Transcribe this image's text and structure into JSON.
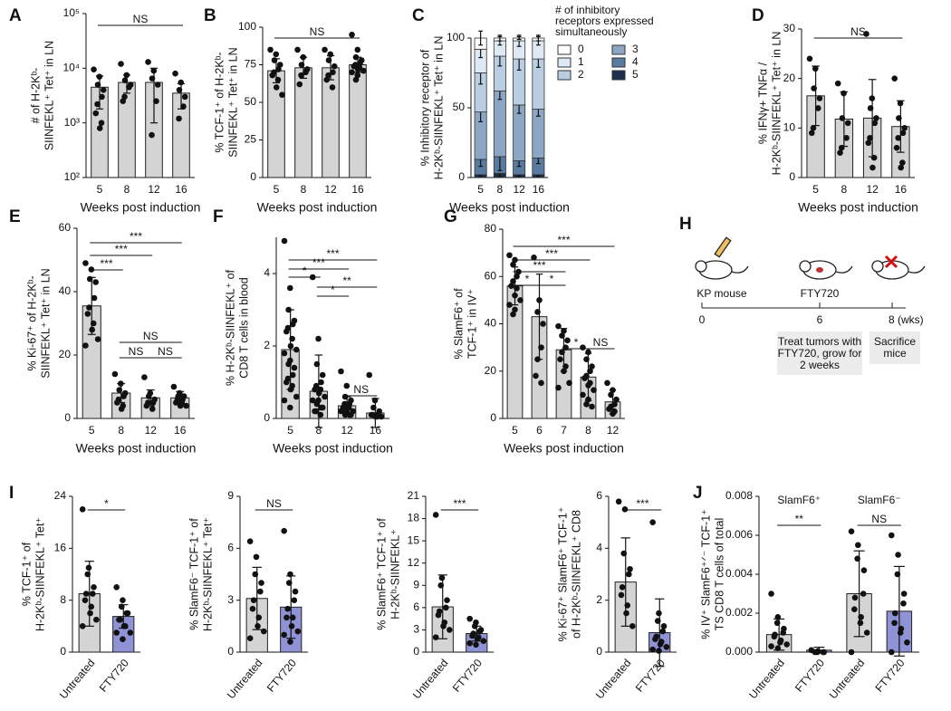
{
  "chart_data": [
    {
      "type": "bar",
      "label": "A",
      "ylabel": [
        "# of H-2Kᵇ-",
        "SIINFEKL⁺ Tet⁺ in LN"
      ],
      "xlabel": "Weeks post induction",
      "log": true,
      "categories": [
        "5",
        "8",
        "12",
        "16"
      ],
      "values": [
        4500,
        5500,
        5500,
        3500
      ],
      "errors": [
        2700,
        2000,
        4500,
        1700
      ],
      "color": "#d4d4d4",
      "points": [
        [
          9500,
          7000,
          5000,
          4000,
          3000,
          2200,
          1500,
          1000,
          800
        ],
        [
          12000,
          7500,
          6000,
          5000,
          4500,
          3000,
          2500
        ],
        [
          13000,
          9000,
          6500,
          5000,
          2500,
          600
        ],
        [
          8000,
          5500,
          4000,
          3000,
          2000,
          1200
        ]
      ],
      "ylim": [
        100,
        100000
      ],
      "yticks": [
        {
          "value": 100,
          "label": "10²"
        },
        {
          "value": 1000,
          "label": "10³"
        },
        {
          "value": 10000,
          "label": "10⁴"
        },
        {
          "value": 100000,
          "label": "10⁵"
        }
      ],
      "sig": [
        {
          "bars": [
            0,
            3
          ],
          "label": "NS"
        }
      ]
    },
    {
      "type": "bar",
      "label": "B",
      "ylabel": [
        "% TCF-1⁺ of H-2Kᵇ-",
        "SIINFEKL⁺ Tet⁺ in LN"
      ],
      "xlabel": "Weeks post induction",
      "categories": [
        "5",
        "8",
        "12",
        "16"
      ],
      "values": [
        71,
        73,
        73,
        75
      ],
      "errors": [
        8,
        7,
        8,
        5
      ],
      "color": "#d4d4d4",
      "points": [
        [
          85,
          82,
          78,
          75,
          72,
          70,
          68,
          65,
          60,
          55
        ],
        [
          85,
          80,
          75,
          72,
          70,
          68,
          62
        ],
        [
          85,
          82,
          78,
          74,
          70,
          68,
          65,
          60
        ],
        [
          95,
          85,
          80,
          78,
          76,
          75,
          74,
          73,
          72,
          71,
          70,
          68,
          65
        ]
      ],
      "ylim": [
        0,
        100
      ],
      "yticks": [
        0,
        25,
        50,
        75,
        100
      ],
      "sig": [
        {
          "bars": [
            0,
            3
          ],
          "label": "NS"
        }
      ]
    },
    {
      "type": "stacked",
      "label": "C",
      "ylabel": [
        "% Inhibitory receptor of",
        "H-2Kᵇ-SIINFEKL⁺ Tet⁺ in LN"
      ],
      "xlabel": "Weeks post induction",
      "legend_title": [
        "# of inhibitory",
        "receptors expressed",
        "simultaneously"
      ],
      "categories": [
        "5",
        "8",
        "12",
        "16"
      ],
      "series": [
        {
          "name": "5",
          "color": "#1c2f4d",
          "values": [
            2,
            3,
            2,
            2
          ],
          "errors": [
            1,
            2,
            1,
            1
          ]
        },
        {
          "name": "4",
          "color": "#5a7aa0",
          "values": [
            11,
            12,
            10,
            12
          ],
          "errors": [
            5,
            10,
            4,
            4
          ]
        },
        {
          "name": "3",
          "color": "#8ca7c4",
          "values": [
            34,
            47,
            40,
            35
          ],
          "errors": [
            7,
            6,
            6,
            5
          ]
        },
        {
          "name": "2",
          "color": "#b9cee3",
          "values": [
            28,
            25,
            33,
            36
          ],
          "errors": [
            8,
            7,
            8,
            6
          ]
        },
        {
          "name": "1",
          "color": "#dfe9f4",
          "values": [
            17,
            11,
            13,
            13
          ],
          "errors": [
            6,
            3,
            4,
            3
          ]
        },
        {
          "name": "0",
          "color": "#ffffff",
          "values": [
            8,
            2,
            2,
            2
          ],
          "errors": [
            5,
            2,
            1,
            2
          ]
        }
      ],
      "ylim": [
        0,
        100
      ],
      "yticks": [
        0,
        50,
        100
      ]
    },
    {
      "type": "bar",
      "label": "D",
      "ylabel": [
        "% IFNγ+ TNFα /",
        "H-2Kᵇ-SIINFEKL⁺ Tet⁺ in LN"
      ],
      "xlabel": "Weeks post induction",
      "categories": [
        "5",
        "8",
        "12",
        "16"
      ],
      "values": [
        16.5,
        11.8,
        12,
        10.3
      ],
      "errors": [
        6,
        5.5,
        7.8,
        5.2
      ],
      "color": "#d4d4d4",
      "points": [
        [
          24,
          22,
          18,
          16,
          14,
          10,
          9
        ],
        [
          19,
          17,
          12,
          11,
          8,
          6,
          5
        ],
        [
          29,
          16,
          14,
          12,
          11,
          8,
          7,
          4,
          2
        ],
        [
          20,
          15,
          12,
          10,
          9,
          8,
          6,
          3,
          2
        ]
      ],
      "ylim": [
        0,
        30
      ],
      "yticks": [
        0,
        10,
        20,
        30
      ],
      "sig": [
        {
          "bars": [
            0,
            3
          ],
          "label": "NS"
        }
      ]
    },
    {
      "type": "bar",
      "label": "E",
      "ylabel": [
        "% Ki-67⁺ of H-2Kᵇ-",
        "SIINFEKL⁺ Tet⁺ in LN"
      ],
      "xlabel": "Weeks post induction",
      "categories": [
        "5",
        "8",
        "12",
        "16"
      ],
      "values": [
        35.5,
        8,
        6.5,
        6.5
      ],
      "errors": [
        9,
        3,
        2.5,
        2
      ],
      "color": "#d4d4d4",
      "points": [
        [
          49,
          47,
          44,
          43,
          38,
          35,
          33,
          30,
          28,
          25,
          23
        ],
        [
          14,
          11,
          9,
          8,
          7,
          6,
          5,
          4,
          3
        ],
        [
          13,
          8,
          7,
          6,
          5,
          5,
          4,
          3
        ],
        [
          10,
          8,
          7,
          7,
          6,
          6,
          5,
          5,
          4,
          4
        ]
      ],
      "ylim": [
        0,
        60
      ],
      "yticks": [
        0,
        20,
        40,
        60
      ],
      "sig": [
        {
          "bars": [
            0,
            3
          ],
          "label": "***"
        },
        {
          "bars": [
            0,
            2
          ],
          "label": "***"
        },
        {
          "bars": [
            0,
            1
          ],
          "label": "***"
        },
        {
          "bars": [
            1,
            3
          ],
          "label": "NS"
        },
        {
          "bars": [
            1,
            2
          ],
          "label": "NS"
        },
        {
          "bars": [
            2,
            3
          ],
          "label": "NS"
        }
      ]
    },
    {
      "type": "bar",
      "label": "F",
      "ylabel": [
        "% H-2Kᵇ-SIINFEKL⁺ of",
        "CD8 T cells in blood"
      ],
      "xlabel": "Weeks post induction",
      "categories": [
        "5",
        "8",
        "12",
        "16"
      ],
      "values": [
        1.9,
        0.75,
        0.35,
        0.15
      ],
      "errors": [
        1.1,
        1.0,
        0.25,
        0.4
      ],
      "color": "#d4d4d4",
      "points": [
        [
          4.9,
          3.6,
          3.0,
          2.7,
          2.6,
          2.5,
          2.4,
          2.2,
          2.0,
          1.9,
          1.8,
          1.6,
          1.5,
          1.4,
          1.2,
          1.1,
          1.0,
          0.9,
          0.8,
          0.6,
          0.5,
          0.3
        ],
        [
          3.9,
          2.2,
          1.5,
          1.2,
          1.0,
          0.9,
          0.8,
          0.8,
          0.7,
          0.6,
          0.5,
          0.5,
          0.4,
          0.3,
          0.3,
          0.2,
          0.2,
          0.1
        ],
        [
          1.3,
          0.9,
          0.6,
          0.5,
          0.4,
          0.4,
          0.3,
          0.3,
          0.3,
          0.2,
          0.2,
          0.2,
          0.1,
          0.1,
          0.1
        ],
        [
          1.2,
          0.5,
          0.3,
          0.2,
          0.1,
          0.1,
          0.1,
          0.05,
          0.05,
          0.05
        ]
      ],
      "ylim": [
        0,
        5
      ],
      "yticks": [
        0,
        2,
        4
      ],
      "sig": [
        {
          "bars": [
            0,
            3
          ],
          "label": "***"
        },
        {
          "bars": [
            0,
            2
          ],
          "label": "***"
        },
        {
          "bars": [
            0,
            1
          ],
          "label": "*"
        },
        {
          "bars": [
            1,
            3
          ],
          "label": "**"
        },
        {
          "bars": [
            1,
            2
          ],
          "label": "*"
        },
        {
          "bars": [
            2,
            3
          ],
          "label": "NS"
        }
      ]
    },
    {
      "type": "bar",
      "label": "G",
      "ylabel": [
        "% SlamF6⁺ of",
        "TCF-1⁺ in IV⁺"
      ],
      "xlabel": "Weeks post induction",
      "categories": [
        "5",
        "6",
        "7",
        "8",
        "12"
      ],
      "values": [
        56,
        43,
        29,
        17.5,
        7
      ],
      "errors": [
        8,
        18,
        9,
        10,
        5
      ],
      "color": "#d4d4d4",
      "points": [
        [
          69,
          67,
          65,
          62,
          60,
          58,
          56,
          55,
          52,
          50,
          48,
          46,
          44
        ],
        [
          68,
          50,
          45,
          40,
          30,
          25,
          18,
          15
        ],
        [
          39,
          37,
          35,
          33,
          30,
          28,
          25,
          22,
          20,
          15,
          13
        ],
        [
          30,
          28,
          25,
          22,
          20,
          18,
          17,
          15,
          14,
          12,
          10,
          8,
          6,
          5
        ],
        [
          15,
          12,
          10,
          8,
          6,
          5,
          4,
          3,
          2
        ]
      ],
      "ylim": [
        0,
        80
      ],
      "yticks": [
        0,
        20,
        40,
        60,
        80
      ],
      "sig": [
        {
          "bars": [
            0,
            4
          ],
          "label": "***"
        },
        {
          "bars": [
            0,
            3
          ],
          "label": "***"
        },
        {
          "bars": [
            0,
            2
          ],
          "label": "***"
        },
        {
          "bars": [
            0,
            1
          ],
          "label": "*"
        },
        {
          "bars": [
            1,
            2
          ],
          "label": "*"
        },
        {
          "bars": [
            2,
            3
          ],
          "label": "*"
        },
        {
          "bars": [
            3,
            4
          ],
          "label": "NS"
        }
      ]
    },
    {
      "type": "bar",
      "label": "I",
      "ylabel": [
        "% TCF-1⁺ of",
        "H-2Kᵇ-SIINFEKL⁺ Tet⁺"
      ],
      "categories": [
        "Untreated",
        "FTY720"
      ],
      "values": [
        9,
        5.5
      ],
      "errors": [
        5,
        1.8
      ],
      "colors": [
        "#d4d4d4",
        "#8f93d6"
      ],
      "points": [
        [
          22,
          13,
          12,
          10,
          9,
          9,
          8,
          7,
          6,
          5,
          4
        ],
        [
          10,
          8,
          7,
          6,
          6,
          5,
          5,
          4,
          4,
          3,
          3,
          2
        ]
      ],
      "ylim": [
        0,
        24
      ],
      "yticks": [
        0,
        8,
        16,
        24
      ],
      "sig": [
        {
          "bars": [
            0,
            1
          ],
          "label": "*"
        }
      ]
    },
    {
      "type": "bar",
      "ylabel": [
        "% SlamF6⁻ TCF-1⁺ of",
        "H-2Kᵇ-SIINFEKL⁺ Tet⁺"
      ],
      "categories": [
        "Untreated",
        "FTY720"
      ],
      "values": [
        3.1,
        2.6
      ],
      "errors": [
        1.8,
        1.8
      ],
      "colors": [
        "#d4d4d4",
        "#8f93d6"
      ],
      "points": [
        [
          6.4,
          5.5,
          4.5,
          4,
          3.5,
          3,
          2.5,
          2,
          1.5,
          1.2,
          0.8
        ],
        [
          7,
          4.5,
          4,
          3.5,
          3,
          2.5,
          2,
          2,
          1.5,
          1.2,
          1,
          0.6
        ]
      ],
      "ylim": [
        0,
        9
      ],
      "yticks": [
        0,
        3,
        6,
        9
      ],
      "sig": [
        {
          "bars": [
            0,
            1
          ],
          "label": "NS"
        }
      ]
    },
    {
      "type": "bar",
      "ylabel": [
        "% SlamF6⁺ TCF-1⁺ of",
        "H-2Kᵇ-SIINFEKL⁺"
      ],
      "categories": [
        "Untreated",
        "FTY720"
      ],
      "values": [
        6.1,
        2.5
      ],
      "errors": [
        4.3,
        1
      ],
      "colors": [
        "#d4d4d4",
        "#8f93d6"
      ],
      "points": [
        [
          18.5,
          10,
          9,
          7,
          6,
          5.5,
          5,
          4,
          3.5,
          3,
          2
        ],
        [
          4.5,
          4,
          3.5,
          3,
          2.8,
          2.5,
          2.2,
          2,
          1.8,
          1.5,
          1.2,
          1
        ]
      ],
      "ylim": [
        0,
        21
      ],
      "yticks": [
        0,
        3,
        6,
        9,
        12,
        15,
        18,
        21
      ],
      "sig": [
        {
          "bars": [
            0,
            1
          ],
          "label": "***"
        }
      ]
    },
    {
      "type": "bar",
      "ylabel": [
        "% Ki-67⁺ SlamF6⁺ TCF-1⁺",
        "of H-2Kᵇ-SIINFEKL⁺ CD8"
      ],
      "categories": [
        "Untreated",
        "FTY720"
      ],
      "values": [
        2.7,
        0.75
      ],
      "errors": [
        1.7,
        1.3
      ],
      "colors": [
        "#d4d4d4",
        "#8f93d6"
      ],
      "points": [
        [
          5.8,
          5.5,
          3.8,
          3.2,
          3,
          2.5,
          2.2,
          1.8,
          1.5,
          1
        ],
        [
          5,
          1.5,
          1.2,
          1,
          0.8,
          0.6,
          0.5,
          0.4,
          0.3,
          0.2,
          0.1,
          0.05
        ]
      ],
      "ylim": [
        0,
        6
      ],
      "yticks": [
        0,
        2,
        4,
        6
      ],
      "sig": [
        {
          "bars": [
            0,
            1
          ],
          "label": "***"
        }
      ]
    },
    {
      "type": "bar",
      "label": "J",
      "ylabel": [
        "% IV⁺ SlamF6⁺ᐟ⁻ TCF-1⁺",
        "TS CD8 T cells of total"
      ],
      "groups": [
        "SlamF6⁺",
        "SlamF6⁻"
      ],
      "categories": [
        "Untreated",
        "FTY720",
        "Untreated",
        "FTY720"
      ],
      "values": [
        0.0009,
        0.0001,
        0.003,
        0.0021
      ],
      "errors": [
        0.0008,
        0.00015,
        0.0022,
        0.0023
      ],
      "colors": [
        "#d4d4d4",
        "#8f93d6",
        "#d4d4d4",
        "#8f93d6"
      ],
      "points": [
        [
          0.003,
          0.0018,
          0.0015,
          0.0012,
          0.001,
          0.0009,
          0.0008,
          0.0006,
          0.0005,
          0.0004,
          0.0003,
          0.0002
        ],
        [
          0.0001,
          5e-05,
          0,
          0,
          0,
          0
        ],
        [
          0.0062,
          0.0055,
          0.0048,
          0.0042,
          0.003,
          0.0028,
          0.0022,
          0.0018,
          0.0015,
          0.001,
          0
        ],
        [
          0.006,
          0.005,
          0.004,
          0.003,
          0.0025,
          0.002,
          0.0015,
          0.0012,
          0.001,
          0.0005,
          0
        ]
      ],
      "ylim": [
        0,
        0.008
      ],
      "yticks": [
        {
          "value": 0,
          "label": "0.000"
        },
        {
          "value": 0.002,
          "label": "0.002"
        },
        {
          "value": 0.004,
          "label": "0.004"
        },
        {
          "value": 0.006,
          "label": "0.006"
        },
        {
          "value": 0.008,
          "label": "0.008"
        }
      ],
      "sig": [
        {
          "bars": [
            0,
            1
          ],
          "label": "**"
        },
        {
          "bars": [
            2,
            3
          ],
          "label": "NS"
        }
      ]
    }
  ],
  "diagram": {
    "label": "H",
    "mouse_label": "KP mouse",
    "drug_label": "FTY720",
    "timeline": [
      "0",
      "6",
      "8 (wks)"
    ],
    "boxes": [
      [
        "Treat tumors with",
        "FTY720, grow for",
        "2 weeks"
      ],
      [
        "Sacrifice",
        "mice"
      ]
    ]
  }
}
